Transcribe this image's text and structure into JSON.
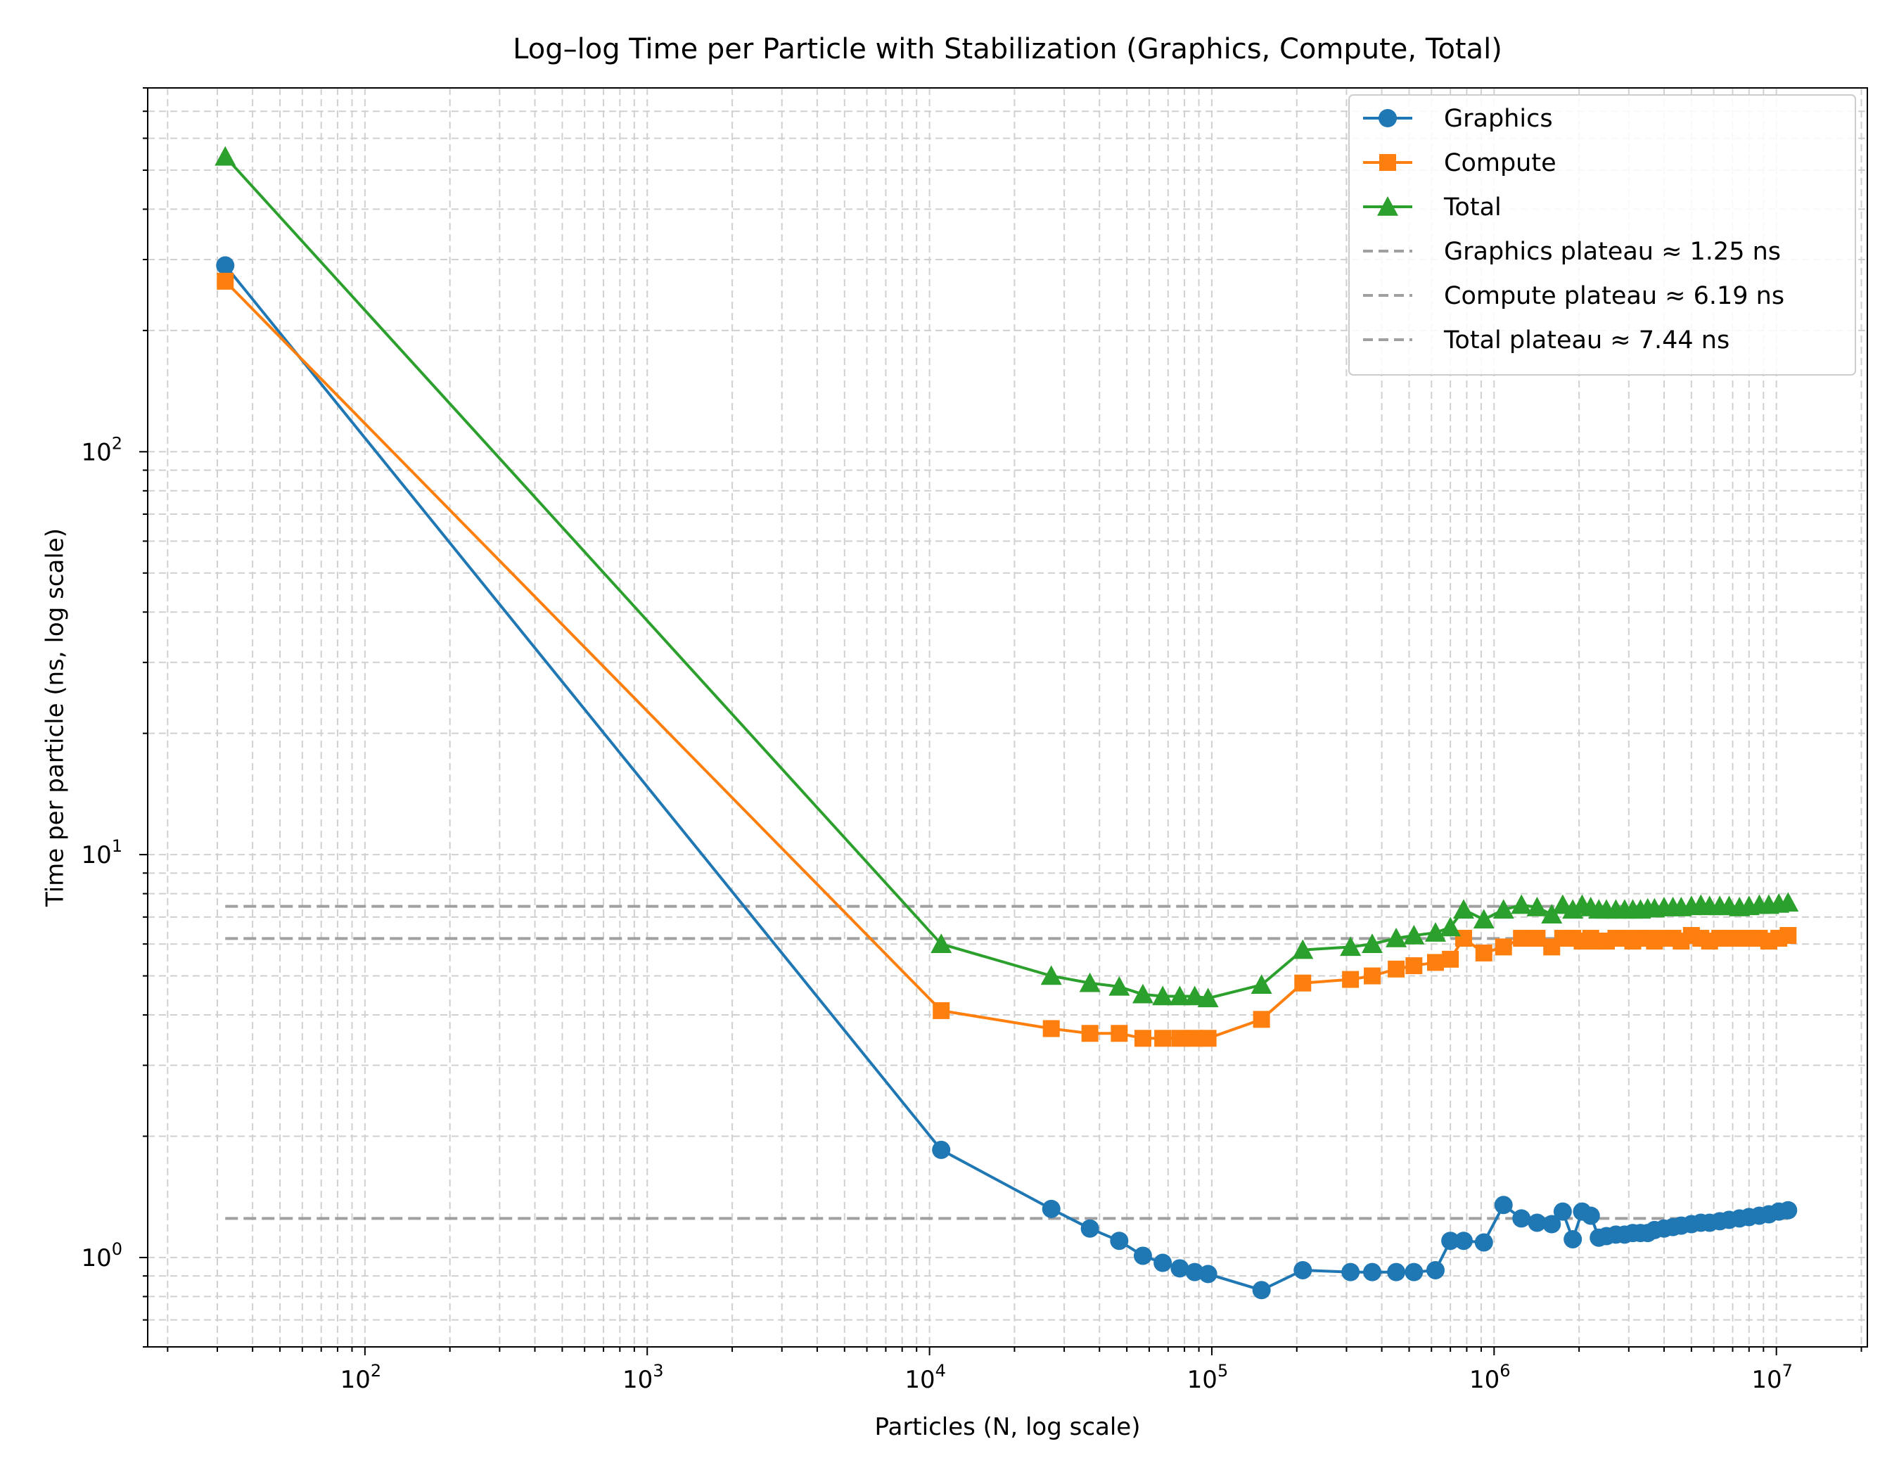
{
  "chart_data": {
    "type": "line",
    "title": "Log–log Time per Particle with Stabilization (Graphics, Compute, Total)",
    "xlabel": "Particles (N, log scale)",
    "ylabel": "Time per particle (ns, log scale)",
    "xscale": "log",
    "yscale": "log",
    "xlim": [
      17,
      21000000
    ],
    "ylim": [
      0.6,
      800
    ],
    "grid": "both (major and minor), dashed",
    "legend_position": "top-right",
    "x_ticks": [
      {
        "value": 100,
        "base": "10",
        "exp": "2"
      },
      {
        "value": 1000,
        "base": "10",
        "exp": "3"
      },
      {
        "value": 10000,
        "base": "10",
        "exp": "4"
      },
      {
        "value": 100000,
        "base": "10",
        "exp": "5"
      },
      {
        "value": 1000000,
        "base": "10",
        "exp": "6"
      },
      {
        "value": 10000000,
        "base": "10",
        "exp": "7"
      }
    ],
    "y_ticks": [
      {
        "value": 1,
        "base": "10",
        "exp": "0"
      },
      {
        "value": 10,
        "base": "10",
        "exp": "1"
      },
      {
        "value": 100,
        "base": "10",
        "exp": "2"
      }
    ],
    "series": [
      {
        "name": "Graphics",
        "color": "#1f77b4",
        "marker": "circle",
        "x": [
          32,
          11000,
          27000,
          37000,
          47000,
          57000,
          67000,
          77000,
          87000,
          97000,
          150000,
          210000,
          310000,
          370000,
          450000,
          520000,
          620000,
          700000,
          780000,
          920000,
          1080000,
          1250000,
          1420000,
          1600000,
          1750000,
          1900000,
          2050000,
          2200000,
          2350000,
          2500000,
          2700000,
          2900000,
          3100000,
          3300000,
          3500000,
          3700000,
          4000000,
          4300000,
          4600000,
          5000000,
          5400000,
          5800000,
          6300000,
          6800000,
          7400000,
          8000000,
          8700000,
          9400000,
          10200000,
          11000000
        ],
        "y": [
          290,
          1.85,
          1.32,
          1.18,
          1.1,
          1.01,
          0.97,
          0.94,
          0.92,
          0.91,
          0.83,
          0.93,
          0.92,
          0.92,
          0.92,
          0.92,
          0.93,
          1.1,
          1.1,
          1.09,
          1.35,
          1.25,
          1.22,
          1.21,
          1.3,
          1.11,
          1.3,
          1.27,
          1.12,
          1.13,
          1.14,
          1.14,
          1.15,
          1.15,
          1.15,
          1.17,
          1.18,
          1.19,
          1.2,
          1.21,
          1.22,
          1.22,
          1.23,
          1.24,
          1.25,
          1.26,
          1.27,
          1.28,
          1.3,
          1.31
        ]
      },
      {
        "name": "Compute",
        "color": "#ff7f0e",
        "marker": "square",
        "x": [
          32,
          11000,
          27000,
          37000,
          47000,
          57000,
          67000,
          77000,
          87000,
          97000,
          150000,
          210000,
          310000,
          370000,
          450000,
          520000,
          620000,
          700000,
          780000,
          920000,
          1080000,
          1250000,
          1420000,
          1600000,
          1750000,
          1900000,
          2050000,
          2200000,
          2350000,
          2500000,
          2700000,
          2900000,
          3100000,
          3300000,
          3500000,
          3700000,
          4000000,
          4300000,
          4600000,
          5000000,
          5400000,
          5800000,
          6300000,
          6800000,
          7400000,
          8000000,
          8700000,
          9400000,
          10200000,
          11000000
        ],
        "y": [
          265,
          4.1,
          3.7,
          3.6,
          3.6,
          3.5,
          3.5,
          3.5,
          3.5,
          3.5,
          3.9,
          4.8,
          4.9,
          5.0,
          5.2,
          5.3,
          5.4,
          5.5,
          6.2,
          5.7,
          5.9,
          6.2,
          6.2,
          5.9,
          6.2,
          6.2,
          6.1,
          6.2,
          6.1,
          6.1,
          6.2,
          6.2,
          6.1,
          6.2,
          6.2,
          6.1,
          6.2,
          6.2,
          6.1,
          6.3,
          6.2,
          6.1,
          6.2,
          6.2,
          6.2,
          6.2,
          6.2,
          6.1,
          6.2,
          6.3
        ]
      },
      {
        "name": "Total",
        "color": "#2ca02c",
        "marker": "triangle",
        "x": [
          32,
          11000,
          27000,
          37000,
          47000,
          57000,
          67000,
          77000,
          87000,
          97000,
          150000,
          210000,
          310000,
          370000,
          450000,
          520000,
          620000,
          700000,
          780000,
          920000,
          1080000,
          1250000,
          1420000,
          1600000,
          1750000,
          1900000,
          2050000,
          2200000,
          2350000,
          2500000,
          2700000,
          2900000,
          3100000,
          3300000,
          3500000,
          3700000,
          4000000,
          4300000,
          4600000,
          5000000,
          5400000,
          5800000,
          6300000,
          6800000,
          7400000,
          8000000,
          8700000,
          9400000,
          10200000,
          11000000
        ],
        "y": [
          540,
          6.0,
          5.0,
          4.8,
          4.7,
          4.5,
          4.45,
          4.45,
          4.45,
          4.4,
          4.75,
          5.8,
          5.9,
          6.0,
          6.2,
          6.3,
          6.4,
          6.6,
          7.3,
          6.9,
          7.3,
          7.5,
          7.4,
          7.1,
          7.5,
          7.3,
          7.5,
          7.4,
          7.3,
          7.3,
          7.3,
          7.3,
          7.3,
          7.3,
          7.35,
          7.35,
          7.4,
          7.4,
          7.4,
          7.45,
          7.5,
          7.45,
          7.45,
          7.45,
          7.4,
          7.45,
          7.5,
          7.5,
          7.55,
          7.6
        ]
      }
    ],
    "reference_lines": [
      {
        "name": "Graphics plateau ≈ 1.25 ns",
        "y": 1.25,
        "x_start": 32,
        "x_end": 11000000,
        "color": "#a0a0a0",
        "style": "dashed"
      },
      {
        "name": "Compute plateau ≈ 6.19 ns",
        "y": 6.19,
        "x_start": 32,
        "x_end": 11000000,
        "color": "#a0a0a0",
        "style": "dashed"
      },
      {
        "name": "Total plateau ≈ 7.44 ns",
        "y": 7.44,
        "x_start": 32,
        "x_end": 11000000,
        "color": "#a0a0a0",
        "style": "dashed"
      }
    ]
  }
}
